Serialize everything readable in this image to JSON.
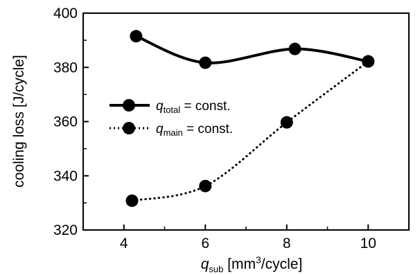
{
  "chart_data": {
    "type": "line",
    "xlabel": {
      "var": "q",
      "sub": "sub",
      "unit_pre": " [mm",
      "unit_sup": "3",
      "unit_post": "/cycle]"
    },
    "ylabel": "cooling loss [J/cycle]",
    "xlim": [
      3,
      11
    ],
    "ylim": [
      320,
      400
    ],
    "xticks": [
      4,
      6,
      8,
      10
    ],
    "yticks": [
      320,
      340,
      360,
      380,
      400
    ],
    "grid": false,
    "legend_position": "center-left",
    "series": [
      {
        "name": "q_total = const.",
        "legend_var": "q",
        "legend_sub": "total",
        "legend_rest": " = const.",
        "line_style": "solid",
        "x": [
          4.3,
          6.0,
          8.2,
          10.0
        ],
        "y": [
          391.5,
          381.7,
          386.8,
          382.2
        ]
      },
      {
        "name": "q_main = const.",
        "legend_var": "q",
        "legend_sub": "main",
        "legend_rest": " = const.",
        "line_style": "dotted",
        "x": [
          4.2,
          6.0,
          8.0,
          10.0
        ],
        "y": [
          330.8,
          336.2,
          359.7,
          382.2
        ]
      }
    ]
  }
}
